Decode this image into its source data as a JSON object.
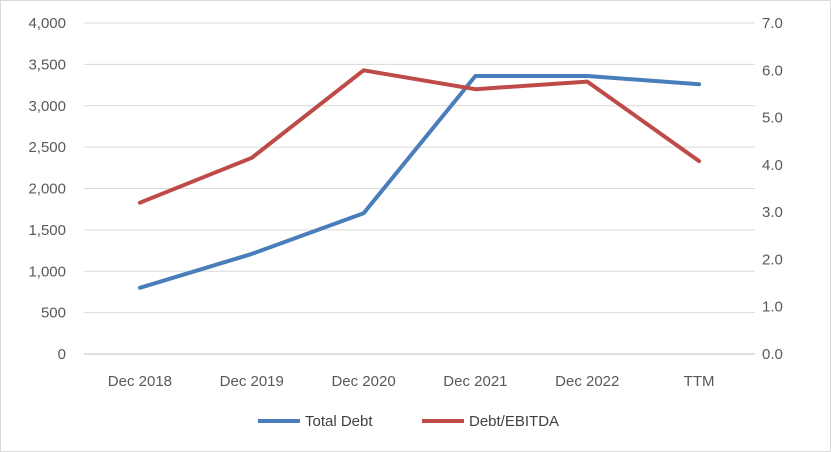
{
  "chart_data": {
    "type": "line",
    "categories": [
      "Dec 2018",
      "Dec 2019",
      "Dec 2020",
      "Dec 2021",
      "Dec 2022",
      "TTM"
    ],
    "series": [
      {
        "name": "Total Debt",
        "axis": "left",
        "color": "#4a7ebb",
        "values": [
          800,
          1210,
          1700,
          3360,
          3360,
          3260
        ]
      },
      {
        "name": "Debt/EBITDA",
        "axis": "right",
        "color": "#be4b48",
        "values": [
          3.2,
          4.15,
          6.0,
          5.6,
          5.76,
          4.08
        ]
      }
    ],
    "left_axis": {
      "ylim": [
        0,
        4000
      ],
      "ticks": [
        0,
        500,
        1000,
        1500,
        2000,
        2500,
        3000,
        3500,
        4000
      ],
      "tick_labels": [
        "0",
        "500",
        "1,000",
        "1,500",
        "2,000",
        "2,500",
        "3,000",
        "3,500",
        "4,000"
      ]
    },
    "right_axis": {
      "ylim": [
        0,
        7
      ],
      "tick_labels": [
        "0.0",
        "1.0",
        "2.0",
        "3.0",
        "4.0",
        "5.0",
        "6.0",
        "7.0"
      ]
    },
    "grid": true,
    "legend_position": "bottom"
  }
}
